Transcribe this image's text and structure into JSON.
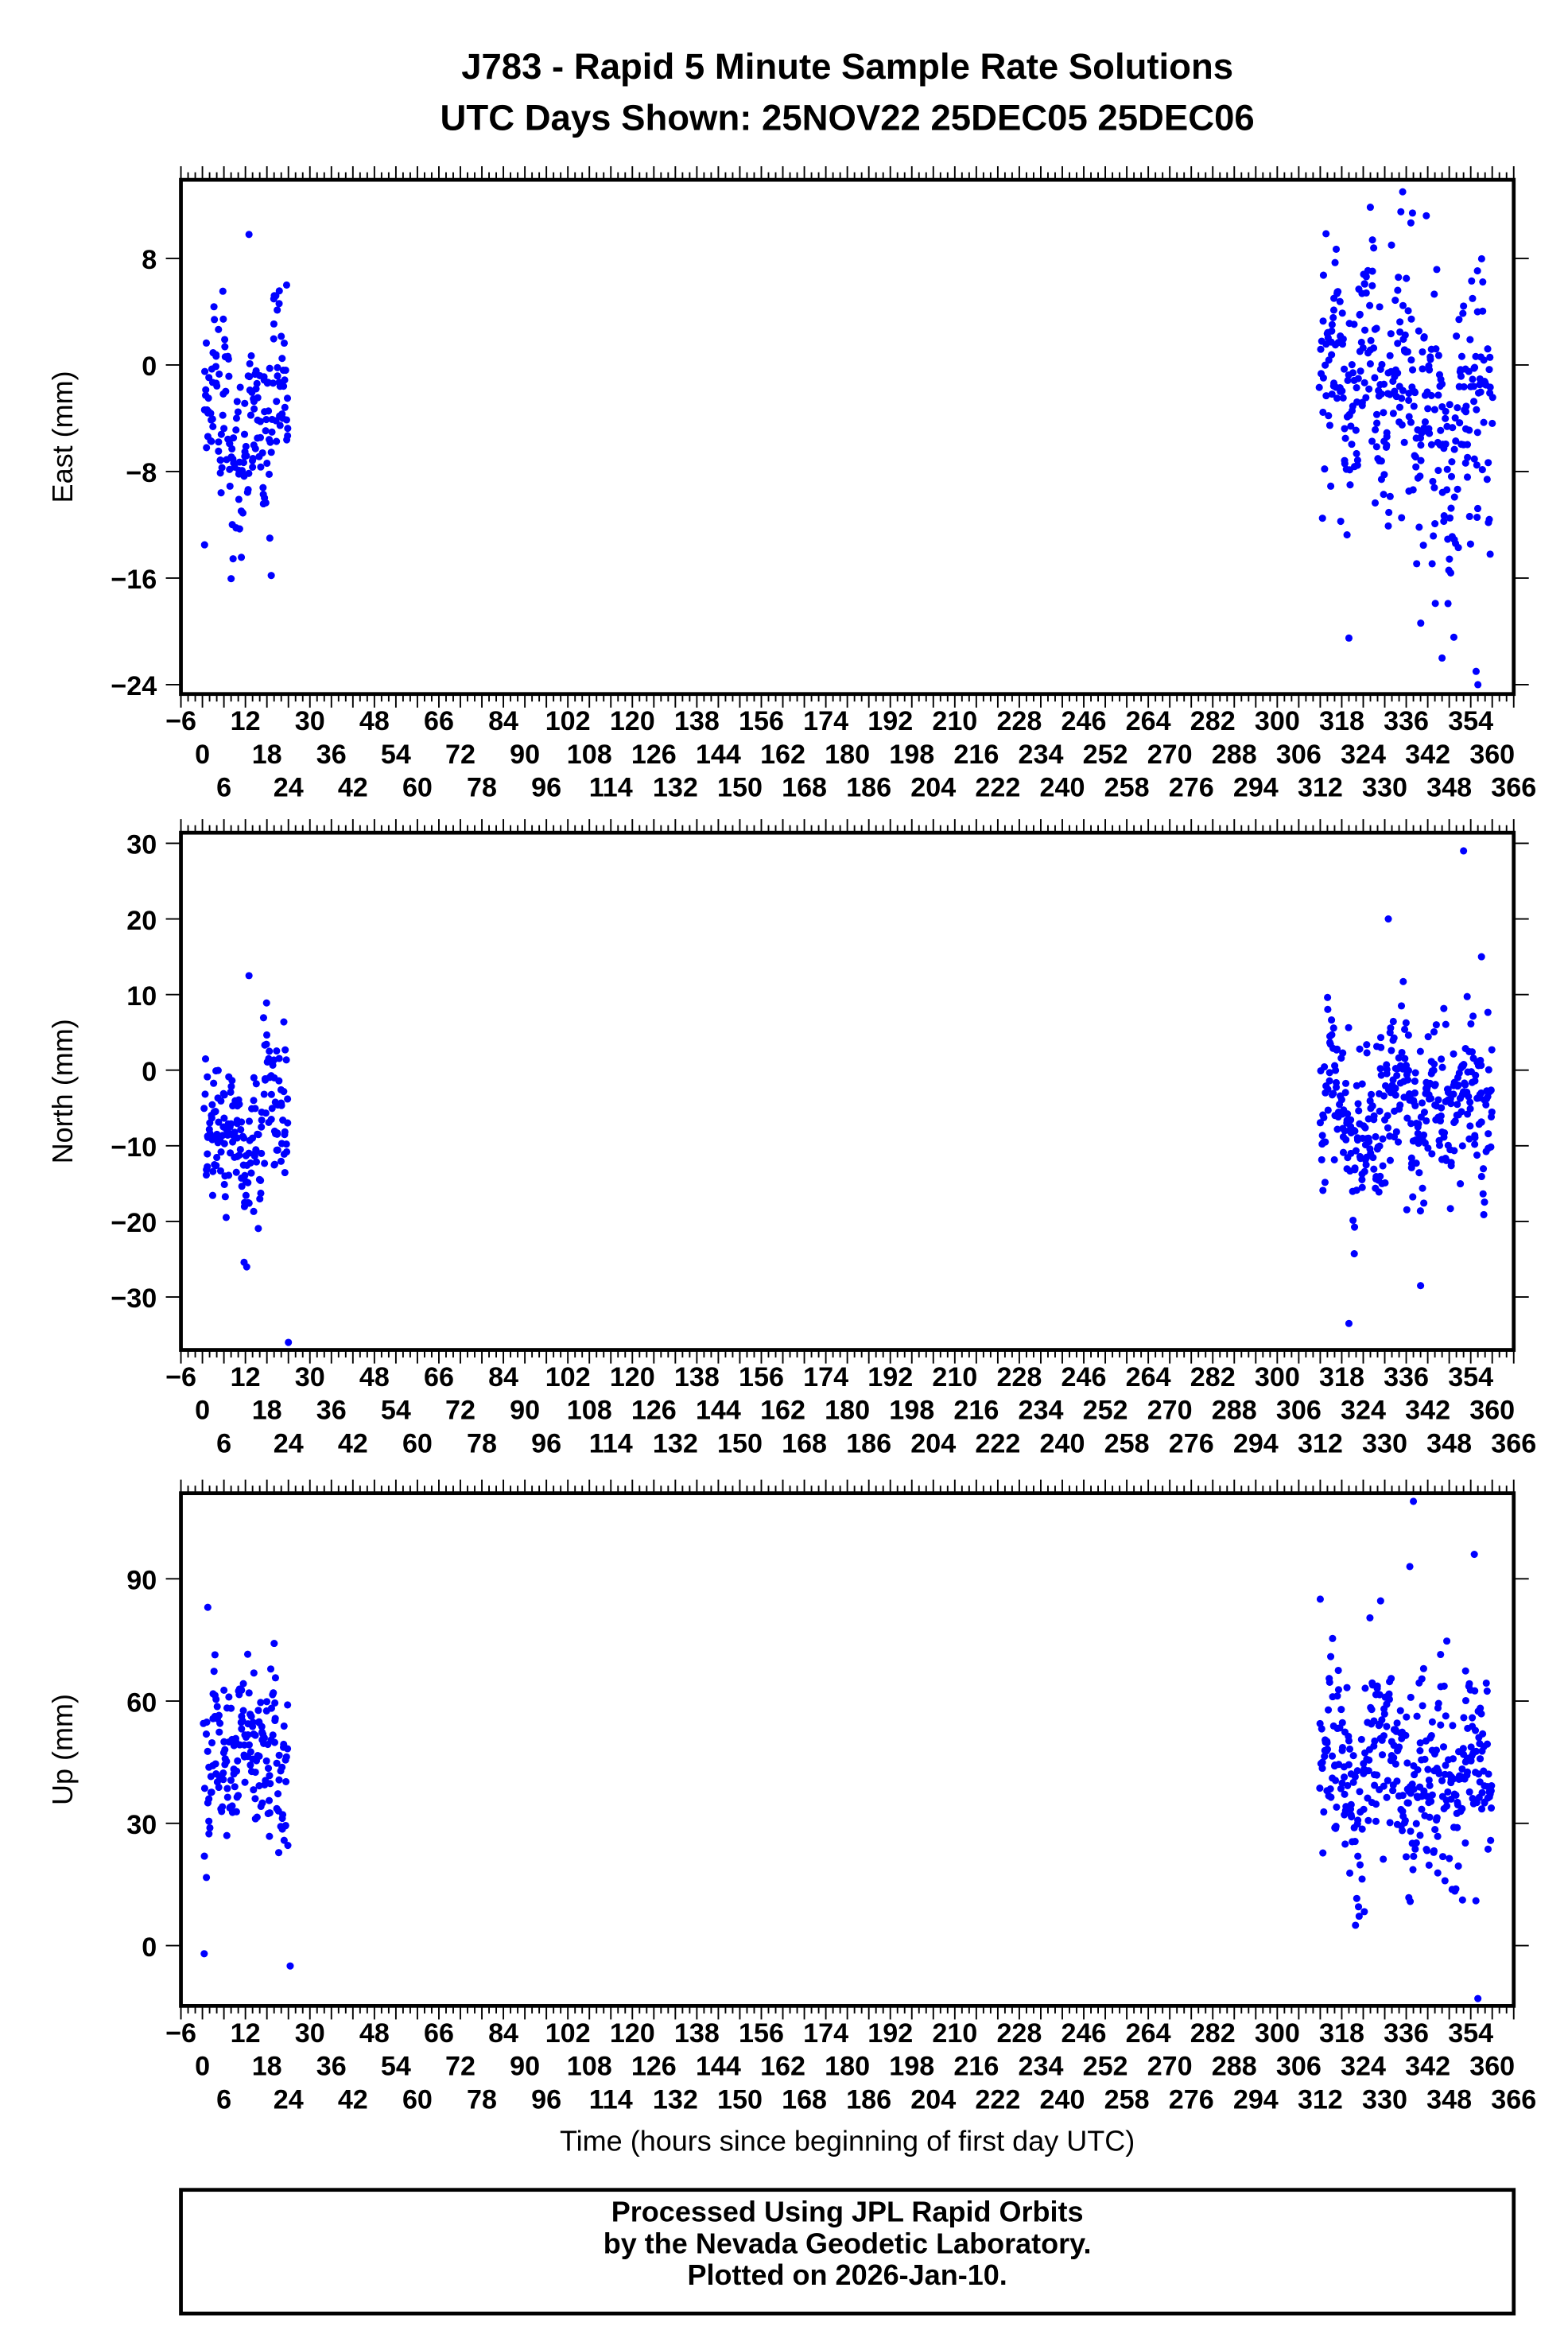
{
  "chart_data": [
    {
      "type": "scatter",
      "title_line1": "J783 - Rapid 5 Minute Sample Rate Solutions",
      "title_line2": "UTC Days Shown:  25NOV22 25DEC05 25DEC06",
      "ylabel": "East (mm)",
      "xlabel": "",
      "xlim": [
        -6,
        366
      ],
      "ylim": [
        -24.7,
        13.9
      ],
      "yticks": [
        8,
        0,
        -8,
        -16,
        -24
      ],
      "color": "#0000ff",
      "clusters": [
        {
          "t_start": 0.5,
          "t_end": 24,
          "step_hours": 0.0833,
          "mean": -3.5,
          "sd": 4.3,
          "seed": 11
        },
        {
          "t_start": 312,
          "t_end": 360,
          "step_hours": 0.0833,
          "mean": -3.5,
          "sd": 5.8,
          "seed": 12
        }
      ],
      "outliers": [
        [
          0.6,
          -13.5
        ],
        [
          13,
          9.8
        ],
        [
          23.5,
          6
        ],
        [
          356,
          -24
        ],
        [
          355.5,
          -23
        ],
        [
          346,
          -22
        ],
        [
          335,
          13
        ],
        [
          334.5,
          11.5
        ],
        [
          320,
          -20.5
        ]
      ]
    },
    {
      "type": "scatter",
      "ylabel": "North (mm)",
      "xlabel": "",
      "xlim": [
        -6,
        366
      ],
      "ylim": [
        -37,
        31.4
      ],
      "yticks": [
        30,
        20,
        10,
        0,
        -10,
        -20,
        -30
      ],
      "color": "#0000ff",
      "clusters": [
        {
          "t_start": 0.5,
          "t_end": 24,
          "step_hours": 0.0833,
          "mean": -8,
          "sd": 5.5,
          "seed": 21
        },
        {
          "t_start": 312,
          "t_end": 360,
          "step_hours": 0.0833,
          "mean": -6,
          "sd": 6.5,
          "seed": 22
        }
      ],
      "outliers": [
        [
          24,
          -36
        ],
        [
          352,
          29
        ],
        [
          331,
          20
        ],
        [
          320,
          -33.5
        ],
        [
          340,
          -28.5
        ],
        [
          13,
          12.5
        ],
        [
          357,
          15
        ]
      ]
    },
    {
      "type": "scatter",
      "ylabel": "Up (mm)",
      "xlabel": "Time (hours since beginning of first day UTC)",
      "xlim": [
        -6,
        366
      ],
      "ylim": [
        -14.8,
        111
      ],
      "yticks": [
        90,
        60,
        30,
        0
      ],
      "color": "#0000ff",
      "clusters": [
        {
          "t_start": 0.5,
          "t_end": 24,
          "step_hours": 0.0833,
          "mean": 46,
          "sd": 11,
          "seed": 31
        },
        {
          "t_start": 312,
          "t_end": 360,
          "step_hours": 0.0833,
          "mean": 40,
          "sd": 14,
          "seed": 32
        }
      ],
      "outliers": [
        [
          24.5,
          -5
        ],
        [
          1.5,
          83
        ],
        [
          0.5,
          -2
        ],
        [
          338,
          109
        ],
        [
          356,
          -13
        ],
        [
          355,
          96
        ],
        [
          312,
          85
        ],
        [
          337,
          93
        ]
      ]
    }
  ],
  "footer": {
    "line1": "Processed Using JPL Rapid Orbits",
    "line2": "by the Nevada Geodetic Laboratory.",
    "line3": "Plotted on 2026-Jan-10."
  }
}
